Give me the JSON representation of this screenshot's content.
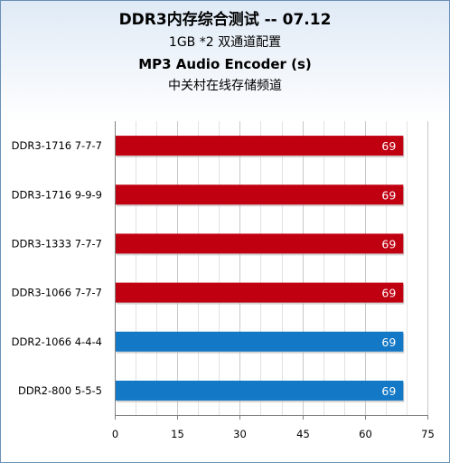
{
  "chart_data": {
    "type": "bar",
    "orientation": "horizontal",
    "title": "DDR3内存综合测试 -- 07.12",
    "subtitle": "1GB *2 双通道配置",
    "test_name": "MP3 Audio Encoder (s)",
    "source": "中关村在线存储频道",
    "categories": [
      "DDR3-1716 7-7-7",
      "DDR3-1716 9-9-9",
      "DDR3-1333 7-7-7",
      "DDR3-1066 7-7-7",
      "DDR2-1066 4-4-4",
      "DDR2-800 5-5-5"
    ],
    "values": [
      69,
      69,
      69,
      69,
      69,
      69
    ],
    "bar_colors": [
      "#c00010",
      "#c00010",
      "#c00010",
      "#c00010",
      "#1378c6",
      "#1378c6"
    ],
    "xlim": [
      0,
      75
    ],
    "xticks": [
      "0",
      "15",
      "30",
      "45",
      "60",
      "75"
    ],
    "grid": true,
    "legend": "none"
  }
}
